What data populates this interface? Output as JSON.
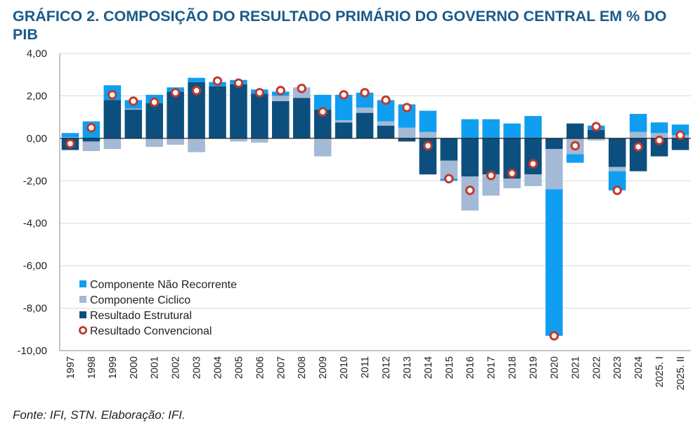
{
  "title": "GRÁFICO 2. COMPOSIÇÃO DO RESULTADO PRIMÁRIO DO GOVERNO CENTRAL EM % DO PIB",
  "source": "Fonte: IFI, STN. Elaboração: IFI.",
  "colors": {
    "nao_recorrente": "#0f9ef0",
    "ciclico": "#a3b9d6",
    "estrutural": "#0c4f7e",
    "convencional_stroke": "#c0392b"
  },
  "chart_data": {
    "type": "bar",
    "stacked": true,
    "title": "",
    "xlabel": "",
    "ylabel": "",
    "ylim": [
      -10,
      4
    ],
    "yticks": [
      "4,00",
      "2,00",
      "0,00",
      "-2,00",
      "-4,00",
      "-6,00",
      "-8,00",
      "-10,00"
    ],
    "grid": true,
    "legend_position": "bottom-left",
    "categories": [
      "1997",
      "1998",
      "1999",
      "2000",
      "2001",
      "2002",
      "2003",
      "2004",
      "2005",
      "2006",
      "2007",
      "2008",
      "2009",
      "2010",
      "2011",
      "2012",
      "2013",
      "2014",
      "2015",
      "2016",
      "2017",
      "2018",
      "2019",
      "2020",
      "2021",
      "2022",
      "2023",
      "2024",
      "2025. I",
      "2025. II"
    ],
    "series": [
      {
        "name": "Componente Não Recorrente",
        "type": "bar",
        "values": [
          0.2,
          0.8,
          0.7,
          0.4,
          0.4,
          0.2,
          0.2,
          0.2,
          0.2,
          0.2,
          0.2,
          0.0,
          0.7,
          1.2,
          0.7,
          1.0,
          1.1,
          1.0,
          -0.1,
          0.9,
          0.9,
          0.7,
          1.05,
          -6.9,
          -0.4,
          0.2,
          -0.9,
          0.85,
          0.5,
          0.5
        ]
      },
      {
        "name": "Componente Ciclico",
        "type": "bar",
        "values": [
          0.05,
          -0.45,
          -0.5,
          0.05,
          -0.4,
          -0.3,
          -0.65,
          0.0,
          -0.15,
          -0.2,
          0.25,
          0.5,
          -0.85,
          0.1,
          0.25,
          0.2,
          0.5,
          0.3,
          -0.85,
          -1.6,
          -1.0,
          -0.45,
          -0.55,
          -1.9,
          -0.75,
          -0.1,
          -0.2,
          0.3,
          0.25,
          0.15
        ]
      },
      {
        "name": "Resultado Estrutural",
        "type": "bar",
        "values": [
          -0.55,
          -0.15,
          1.8,
          1.35,
          1.65,
          2.2,
          2.65,
          2.45,
          2.55,
          2.1,
          1.75,
          1.9,
          1.35,
          0.75,
          1.2,
          0.6,
          -0.15,
          -1.7,
          -1.05,
          -1.8,
          -1.7,
          -1.9,
          -1.7,
          -0.5,
          0.7,
          0.4,
          -1.35,
          -1.55,
          -0.85,
          -0.55
        ]
      },
      {
        "name": "Resultado Convencional",
        "type": "scatter",
        "values": [
          -0.25,
          0.5,
          2.05,
          1.75,
          1.7,
          2.15,
          2.25,
          2.7,
          2.6,
          2.15,
          2.25,
          2.35,
          1.25,
          2.05,
          2.15,
          1.8,
          1.45,
          -0.35,
          -1.9,
          -2.45,
          -1.75,
          -1.65,
          -1.2,
          -9.3,
          -0.35,
          0.55,
          -2.45,
          -0.4,
          -0.1,
          0.15
        ]
      }
    ]
  }
}
